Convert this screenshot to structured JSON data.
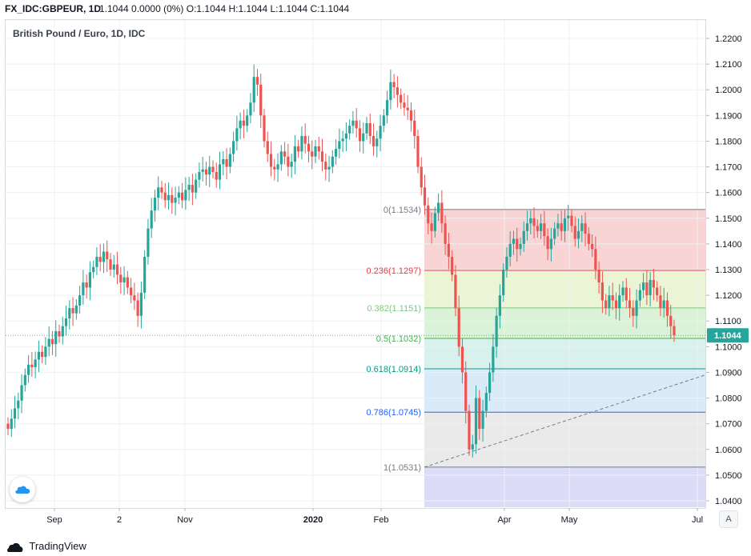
{
  "header": {
    "symbol": "FX_IDC:GBPEUR, 1D",
    "ohlc": "1.1044 0.0000 (0%) O:1.1044 H:1.1044 L:1.1044 C:1.1044"
  },
  "chart_title": "British Pound / Euro, 1D, IDC",
  "footer": {
    "brand": "TradingView"
  },
  "auto_button": "A",
  "colors": {
    "up": "#26a69a",
    "down": "#ef5350",
    "last_price_bg": "#26a69a"
  },
  "chart_data": {
    "type": "candlestick",
    "title": "British Pound / Euro, 1D, IDC",
    "y_ticks": [
      "1.2200",
      "1.2100",
      "1.2000",
      "1.1900",
      "1.1800",
      "1.1700",
      "1.1600",
      "1.1500",
      "1.1400",
      "1.1300",
      "1.1200",
      "1.1100",
      "1.1000",
      "1.0900",
      "1.0800",
      "1.0700",
      "1.0600",
      "1.0500",
      "1.0400"
    ],
    "ylim": [
      1.0385,
      1.2265
    ],
    "x_ticks": [
      {
        "label": "Sep",
        "bold": false
      },
      {
        "label": "2",
        "bold": false
      },
      {
        "label": "Nov",
        "bold": false
      },
      {
        "label": "2020",
        "bold": true
      },
      {
        "label": "Feb",
        "bold": false
      },
      {
        "label": "Apr",
        "bold": false
      },
      {
        "label": "May",
        "bold": false
      },
      {
        "label": "Jul",
        "bold": false
      }
    ],
    "last_price": "1.1044",
    "fibonacci": [
      {
        "label": "0(1.1534)",
        "value": 1.1534,
        "color": "#787b86"
      },
      {
        "label": "0.236(1.1297)",
        "value": 1.1297,
        "color": "#f23645"
      },
      {
        "label": "0.382(1.1151)",
        "value": 1.1151,
        "color": "#81c784"
      },
      {
        "label": "0.5(1.1032)",
        "value": 1.1032,
        "color": "#4caf50"
      },
      {
        "label": "0.618(1.0914)",
        "value": 1.0914,
        "color": "#089981"
      },
      {
        "label": "0.786(1.0745)",
        "value": 1.0745,
        "color": "#2962ff"
      },
      {
        "label": "1(1.0531)",
        "value": 1.0531,
        "color": "#787b86"
      }
    ],
    "fib_zone_colors": [
      "#f5c6c6",
      "#e4f2c7",
      "#cdeeca",
      "#ccece5",
      "#cde3f3",
      "#e3e3e3",
      "#d0d0f5"
    ],
    "trend_line": {
      "from": 1.0531,
      "to": 1.089
    },
    "series_close": [
      1.068,
      1.072,
      1.076,
      1.079,
      1.085,
      1.089,
      1.093,
      1.092,
      1.095,
      1.098,
      1.096,
      1.1,
      1.103,
      1.101,
      1.106,
      1.104,
      1.108,
      1.111,
      1.115,
      1.113,
      1.116,
      1.12,
      1.125,
      1.123,
      1.129,
      1.131,
      1.135,
      1.133,
      1.137,
      1.134,
      1.13,
      1.132,
      1.128,
      1.125,
      1.127,
      1.123,
      1.12,
      1.118,
      1.112,
      1.121,
      1.135,
      1.146,
      1.153,
      1.158,
      1.162,
      1.16,
      1.157,
      1.159,
      1.156,
      1.158,
      1.16,
      1.157,
      1.161,
      1.163,
      1.16,
      1.165,
      1.168,
      1.169,
      1.167,
      1.17,
      1.168,
      1.165,
      1.171,
      1.173,
      1.17,
      1.175,
      1.18,
      1.185,
      1.188,
      1.186,
      1.19,
      1.195,
      1.205,
      1.202,
      1.19,
      1.18,
      1.175,
      1.17,
      1.169,
      1.171,
      1.176,
      1.174,
      1.17,
      1.172,
      1.178,
      1.176,
      1.182,
      1.179,
      1.176,
      1.174,
      1.178,
      1.176,
      1.172,
      1.169,
      1.17,
      1.174,
      1.177,
      1.18,
      1.181,
      1.183,
      1.186,
      1.188,
      1.185,
      1.18,
      1.183,
      1.187,
      1.182,
      1.178,
      1.181,
      1.186,
      1.19,
      1.196,
      1.203,
      1.201,
      1.198,
      1.195,
      1.193,
      1.192,
      1.188,
      1.182,
      1.17,
      1.162,
      1.155,
      1.148,
      1.145,
      1.152,
      1.156,
      1.148,
      1.14,
      1.135,
      1.128,
      1.115,
      1.1,
      1.09,
      1.075,
      1.06,
      1.062,
      1.08,
      1.068,
      1.075,
      1.082,
      1.09,
      1.1,
      1.112,
      1.12,
      1.13,
      1.135,
      1.14,
      1.142,
      1.138,
      1.14,
      1.145,
      1.148,
      1.15,
      1.147,
      1.145,
      1.148,
      1.143,
      1.138,
      1.142,
      1.146,
      1.148,
      1.145,
      1.15,
      1.151,
      1.147,
      1.142,
      1.145,
      1.148,
      1.144,
      1.14,
      1.138,
      1.13,
      1.125,
      1.118,
      1.115,
      1.12,
      1.118,
      1.115,
      1.12,
      1.123,
      1.118,
      1.115,
      1.112,
      1.118,
      1.122,
      1.125,
      1.12,
      1.126,
      1.123,
      1.12,
      1.115,
      1.118,
      1.112,
      1.108,
      1.1044
    ]
  }
}
